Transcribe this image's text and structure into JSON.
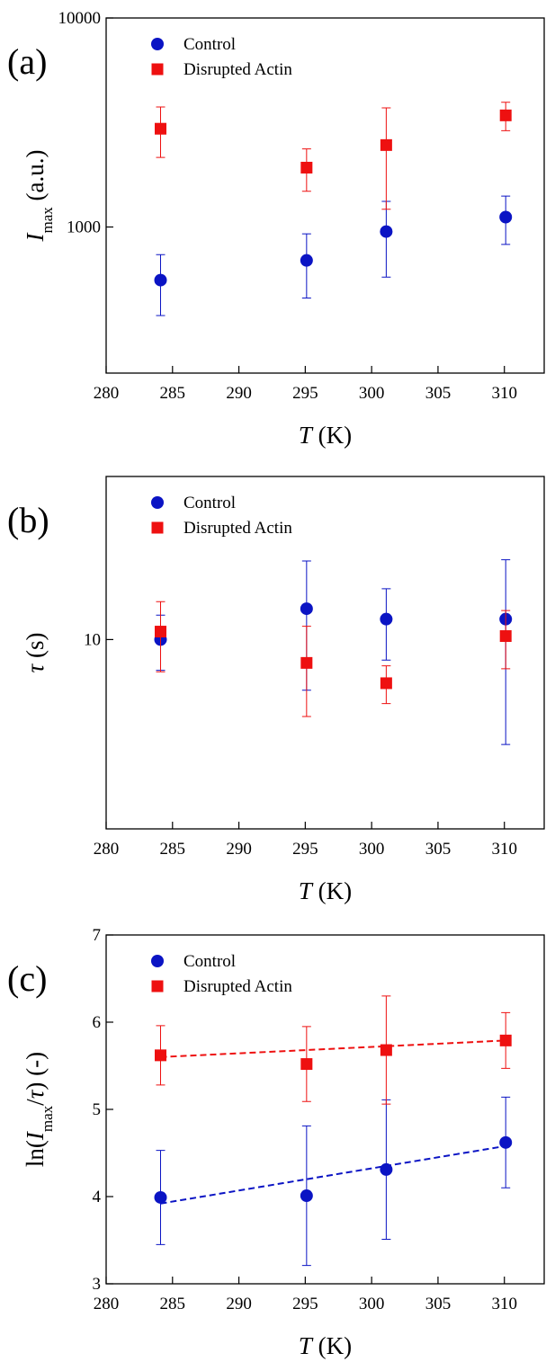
{
  "chart_data": [
    {
      "type": "scatter",
      "panel_label": "(a)",
      "ylabel": [
        {
          "text": "I",
          "style": "italic"
        },
        {
          "text": "max",
          "style": "sub"
        },
        {
          "text": " (a.u.)",
          "style": "normal"
        }
      ],
      "xlabel": [
        {
          "text": "T",
          "style": "italic"
        },
        {
          "text": " (K)",
          "style": "normal"
        }
      ],
      "x": [
        284.1,
        295.1,
        301.1,
        310.1
      ],
      "xlim": [
        280,
        313
      ],
      "xticks": [
        280,
        285,
        290,
        295,
        300,
        305,
        310
      ],
      "ylim": [
        200,
        10000
      ],
      "yticks": [
        1000,
        10000
      ],
      "log_y": true,
      "series": [
        {
          "name": "Control",
          "color": "#0b14c4",
          "marker": "circle",
          "values": [
            557,
            692,
            951,
            1115
          ],
          "errors": [
            180,
            235,
            375,
            290
          ]
        },
        {
          "name": "Disrupted Actin",
          "color": "#ee1010",
          "marker": "square",
          "values": [
            2952,
            1923,
            2466,
            3420
          ],
          "errors": [
            800,
            440,
            1250,
            530
          ]
        }
      ]
    },
    {
      "type": "scatter",
      "panel_label": "(b)",
      "ylabel": [
        {
          "text": "τ",
          "style": "italic"
        },
        {
          "text": " (s)",
          "style": "normal"
        }
      ],
      "xlabel": [
        {
          "text": "T",
          "style": "italic"
        },
        {
          "text": " (K)",
          "style": "normal"
        }
      ],
      "x": [
        284.1,
        295.1,
        301.1,
        310.1
      ],
      "xlim": [
        280,
        313
      ],
      "xticks": [
        280,
        285,
        290,
        295,
        300,
        305,
        310
      ],
      "ylim": [
        2,
        40
      ],
      "yticks": [
        10
      ],
      "log_y": true,
      "series": [
        {
          "name": "Control",
          "color": "#0b14c4",
          "marker": "circle",
          "values": [
            10,
            13,
            11.9,
            11.9
          ],
          "errors": [
            2.3,
            6.5,
            3.5,
            7.8
          ]
        },
        {
          "name": "Disrupted Actin",
          "color": "#ee1010",
          "marker": "square",
          "values": [
            10.7,
            8.2,
            6.9,
            10.3
          ],
          "errors": [
            3.1,
            3,
            1.1,
            2.5
          ]
        }
      ]
    },
    {
      "type": "scatter",
      "panel_label": "(c)",
      "ylabel": [
        {
          "text": "ln(",
          "style": "normal"
        },
        {
          "text": "I",
          "style": "italic"
        },
        {
          "text": "max",
          "style": "sub"
        },
        {
          "text": "/",
          "style": "normal"
        },
        {
          "text": "τ",
          "style": "italic"
        },
        {
          "text": ") (-)",
          "style": "normal"
        }
      ],
      "xlabel": [
        {
          "text": "T",
          "style": "italic"
        },
        {
          "text": " (K)",
          "style": "normal"
        }
      ],
      "x": [
        284.1,
        295.1,
        301.1,
        310.1
      ],
      "xlim": [
        280,
        313
      ],
      "xticks": [
        280,
        285,
        290,
        295,
        300,
        305,
        310
      ],
      "ylim": [
        3,
        7
      ],
      "yticks": [
        3,
        4,
        5,
        6,
        7
      ],
      "log_y": false,
      "series": [
        {
          "name": "Control",
          "color": "#0b14c4",
          "marker": "circle",
          "values": [
            3.99,
            4.01,
            4.31,
            4.62
          ],
          "errors": [
            0.54,
            0.8,
            0.8,
            0.52
          ]
        },
        {
          "name": "Disrupted Actin",
          "color": "#ee1010",
          "marker": "square",
          "values": [
            5.62,
            5.52,
            5.68,
            5.79
          ],
          "errors": [
            0.34,
            0.43,
            0.62,
            0.32
          ]
        }
      ],
      "fits": [
        {
          "color": "#ee1010",
          "x": [
            284.1,
            310.1
          ],
          "values": [
            5.6,
            5.79
          ]
        },
        {
          "color": "#0b14c4",
          "x": [
            284.1,
            310.1
          ],
          "values": [
            3.92,
            4.58
          ]
        }
      ]
    }
  ]
}
